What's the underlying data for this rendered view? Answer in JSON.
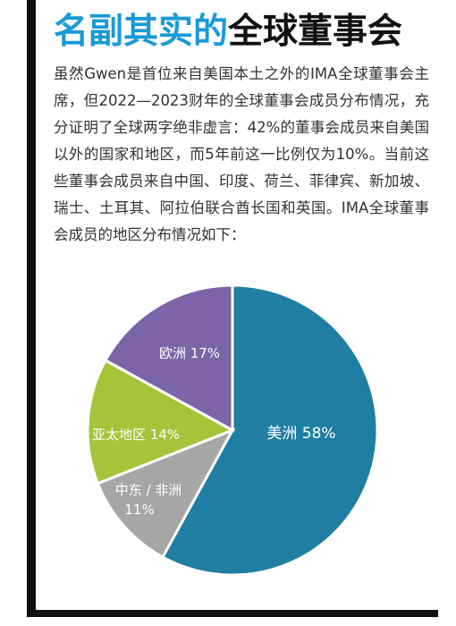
{
  "title": {
    "highlight": "名副其实的",
    "rest": "全球董事会"
  },
  "intro_text": "虽然Gwen是首位来自美国本土之外的IMA全球董事会主席，但2022—2023财年的全球董事会成员分布情况，充分证明了全球两字绝非虚言：42%的董事会成员来自美国以外的国家和地区，而5年前这一比例仅为10%。当前这些董事会成员来自中国、印度、荷兰、菲律宾、新加坡、瑞士、土耳其、阿拉伯联合酋长国和英国。IMA全球董事会成员的地区分布情况如下：",
  "colors": {
    "accent": "#1a9ad6",
    "americas": "#1f7ea1",
    "mea": "#a6a6a6",
    "apac": "#a4c43a",
    "europe": "#7d64a8"
  },
  "chart_data": {
    "type": "pie",
    "unit": "%",
    "slices": [
      {
        "label": "美洲",
        "value": 58,
        "text": "美洲 58%",
        "color": "#1f7ea1"
      },
      {
        "label": "中东 / 非洲",
        "value": 11,
        "text_line1": "中东 / 非洲",
        "text_line2": "11%",
        "color": "#a6a6a6"
      },
      {
        "label": "亚太地区",
        "value": 14,
        "text": "亚太地区 14%",
        "color": "#a4c43a"
      },
      {
        "label": "欧洲",
        "value": 17,
        "text": "欧洲 17%",
        "color": "#7d64a8"
      }
    ]
  }
}
